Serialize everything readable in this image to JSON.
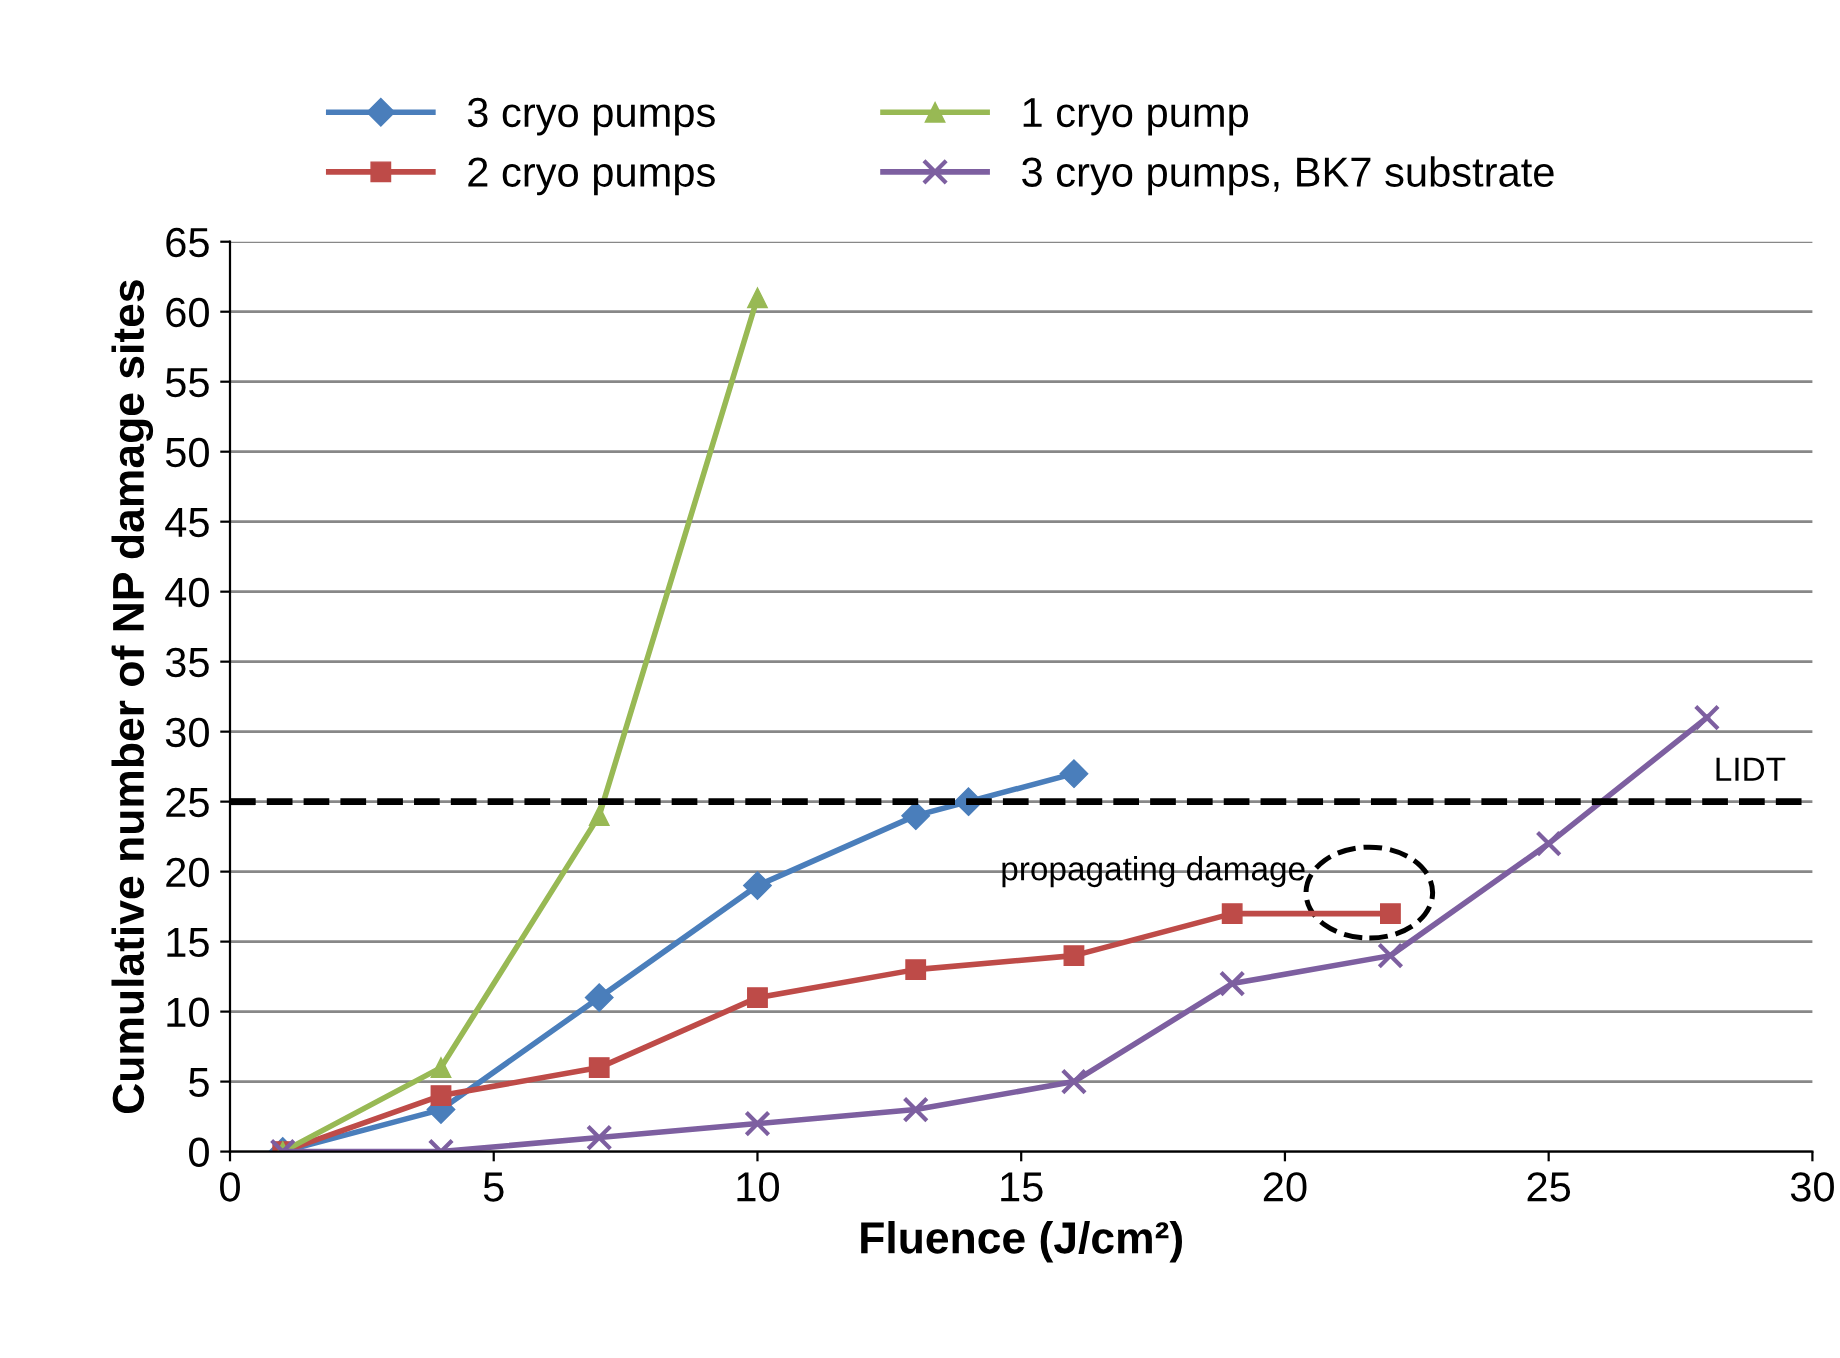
{
  "chart_data": {
    "type": "line",
    "xlabel": "Fluence (J/cm²)",
    "ylabel": "Cumulative number of NP damage sites",
    "xlim": [
      0,
      30
    ],
    "xticks": [
      0,
      5,
      10,
      15,
      20,
      25,
      30
    ],
    "ylim": [
      0,
      65
    ],
    "yticks": [
      0,
      5,
      10,
      15,
      20,
      25,
      30,
      35,
      40,
      45,
      50,
      55,
      60,
      65
    ],
    "grid": "y",
    "legend": "top",
    "series": [
      {
        "name": "3 cryo pumps",
        "color": "#4a7ebb",
        "marker": "diamond",
        "x": [
          1,
          4,
          7,
          10,
          13,
          14,
          16
        ],
        "values": [
          0,
          3,
          11,
          19,
          24,
          25,
          27
        ]
      },
      {
        "name": "2 cryo pumps",
        "color": "#be4b48",
        "marker": "square",
        "x": [
          1,
          4,
          7,
          10,
          13,
          16,
          19,
          22
        ],
        "values": [
          0,
          4,
          6,
          11,
          13,
          14,
          17,
          17
        ]
      },
      {
        "name": "1 cryo pump",
        "color": "#98b954",
        "marker": "triangle",
        "x": [
          1,
          4,
          7,
          10
        ],
        "values": [
          0,
          6,
          24,
          61
        ]
      },
      {
        "name": "3 cryo pumps, BK7 substrate",
        "color": "#7d5fa0",
        "marker": "cross",
        "x": [
          1,
          4,
          7,
          10,
          13,
          16,
          19,
          22,
          25,
          28
        ],
        "values": [
          0,
          0,
          1,
          2,
          3,
          5,
          12,
          14,
          22,
          31
        ]
      }
    ],
    "ref_lines": [
      {
        "axis": "y",
        "value": 25,
        "label": "LIDT",
        "color": "#000000",
        "line_style": "dashed"
      }
    ],
    "annotations": [
      {
        "text": "propagating damage",
        "x": 22,
        "y": 17
      }
    ]
  }
}
